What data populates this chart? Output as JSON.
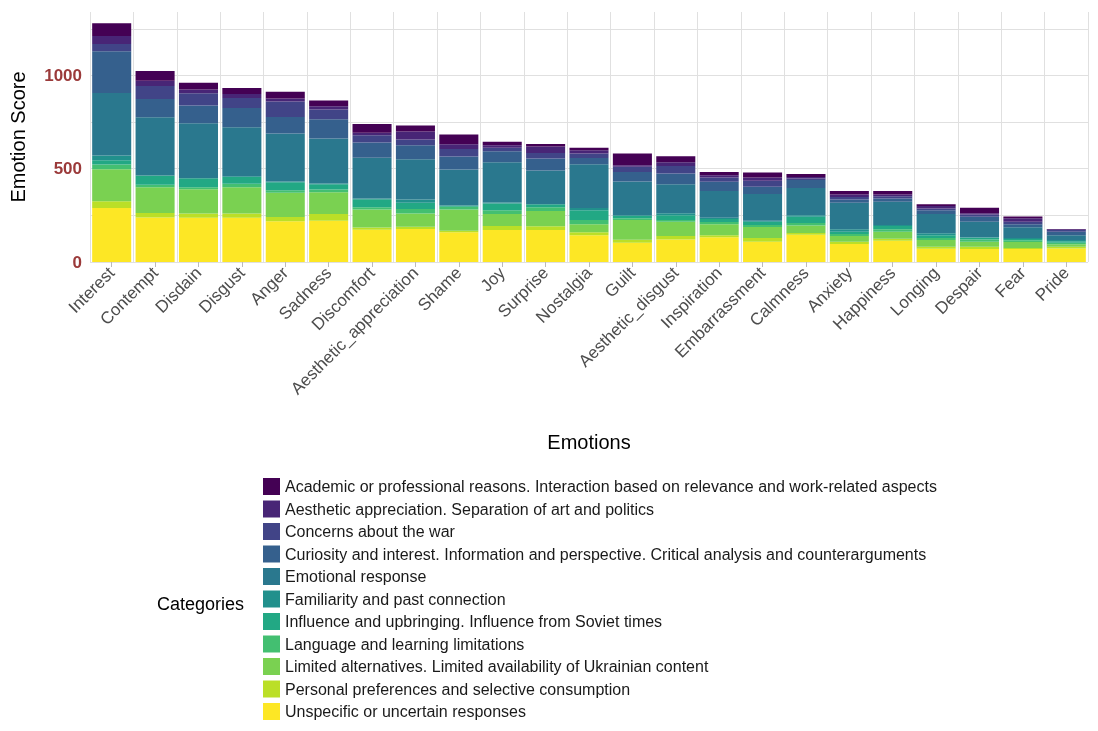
{
  "chart_data": {
    "type": "bar",
    "stacked": true,
    "xlabel": "Emotions",
    "ylabel": "Emotion Score",
    "legend_title": "Categories",
    "legend": "bottom",
    "grid": true,
    "categories": [
      "Interest",
      "Contempt",
      "Disdain",
      "Disgust",
      "Anger",
      "Sadness",
      "Discomfort",
      "Aesthetic_appreciation",
      "Shame",
      "Joy",
      "Surprise",
      "Nostalgia",
      "Guilt",
      "Aesthetic_disgust",
      "Inspiration",
      "Embarrassment",
      "Calmness",
      "Anxiety",
      "Happiness",
      "Longing",
      "Despair",
      "Fear",
      "Pride"
    ],
    "ylim": [
      0,
      1340
    ],
    "yticks": [
      0,
      {
        "value": 250,
        "label": null
      },
      500,
      {
        "value": 750,
        "label": null
      },
      1000,
      {
        "value": 1250,
        "label": null
      }
    ],
    "series": [
      {
        "name": "Unspecific or uncertain responses",
        "color": "#fde725",
        "values": [
          289,
          239,
          237,
          237,
          218,
          221,
          173,
          177,
          160,
          171,
          171,
          143,
          103,
          121,
          132,
          109,
          146,
          96,
          114,
          71,
          70,
          70,
          73
        ]
      },
      {
        "name": "Personal preferences and selective consumption",
        "color": "#bbdf27",
        "values": [
          37,
          23,
          23,
          23,
          23,
          36,
          12,
          12,
          7,
          22,
          20,
          16,
          16,
          18,
          12,
          19,
          9,
          13,
          11,
          11,
          12,
          5,
          9
        ]
      },
      {
        "name": "Limited alternatives. Limited availability of Ukrainian content",
        "color": "#7ad151",
        "values": [
          171,
          139,
          130,
          141,
          130,
          117,
          97,
          71,
          115,
          64,
          82,
          44,
          106,
          77,
          59,
          59,
          41,
          30,
          37,
          36,
          27,
          32,
          13
        ]
      },
      {
        "name": "Language and learning limitations",
        "color": "#43bf71",
        "values": [
          26,
          13,
          11,
          18,
          14,
          15,
          12,
          24,
          14,
          20,
          20,
          22,
          10,
          9,
          11,
          11,
          13,
          11,
          13,
          10,
          12,
          9,
          8
        ]
      },
      {
        "name": "Influence and upbringing. Influence from Soviet times",
        "color": "#22a884",
        "values": [
          23,
          50,
          48,
          37,
          43,
          28,
          43,
          33,
          7,
          37,
          16,
          53,
          12,
          26,
          16,
          18,
          33,
          12,
          18,
          16,
          9,
          7,
          8
        ]
      },
      {
        "name": "Familiarity and past connection",
        "color": "#21908c",
        "values": [
          25,
          null,
          null,
          4,
          4,
          4,
          4,
          18,
          null,
          5,
          null,
          11,
          4,
          10,
          7,
          5,
          8,
          13,
          5,
          10,
          2,
          5,
          7
        ]
      },
      {
        "name": "Emotional response",
        "color": "#2a788e",
        "values": [
          335,
          312,
          295,
          262,
          257,
          241,
          218,
          216,
          193,
          216,
          182,
          235,
          181,
          156,
          144,
          144,
          147,
          142,
          125,
          103,
          84,
          58,
          26
        ]
      },
      {
        "name": "Curiosity and interest. Information and perspective. Critical analysis and counterarguments",
        "color": "#35608d",
        "values": [
          223,
          98,
          95,
          103,
          88,
          103,
          81,
          75,
          69,
          59,
          64,
          34,
          51,
          58,
          49,
          38,
          42,
          18,
          18,
          21,
          26,
          17,
          18
        ]
      },
      {
        "name": "Concerns about the war",
        "color": "#414487",
        "values": [
          39,
          70,
          65,
          54,
          83,
          52,
          39,
          30,
          41,
          18,
          29,
          23,
          27,
          40,
          23,
          32,
          9,
          14,
          12,
          9,
          13,
          13,
          9
        ]
      },
      {
        "name": "Aesthetic appreciation. Separation of art and politics",
        "color": "#482576",
        "values": [
          43,
          27,
          20,
          22,
          17,
          18,
          14,
          43,
          25,
          14,
          35,
          18,
          9,
          20,
          12,
          18,
          8,
          13,
          9,
          13,
          6,
          18,
          4
        ]
      },
      {
        "name": "Academic or professional reasons. Interaction based on relevance and work-related aspects",
        "color": "#440154",
        "values": [
          69,
          53,
          37,
          32,
          36,
          30,
          47,
          32,
          52,
          18,
          13,
          13,
          62,
          32,
          18,
          27,
          16,
          19,
          18,
          10,
          30,
          10,
          2
        ]
      }
    ]
  }
}
